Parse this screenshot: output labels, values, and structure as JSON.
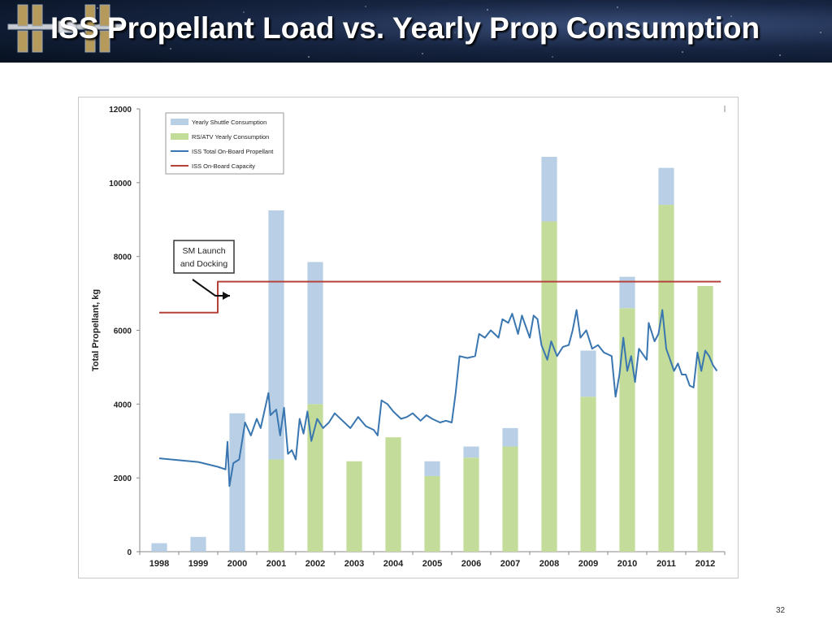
{
  "slide": {
    "title": "ISS Propellant Load vs. Yearly Prop Consumption",
    "slide_number": "32"
  },
  "chart_data": {
    "type": "bar",
    "title": "",
    "xlabel": "",
    "ylabel": "Total Propellant, kg",
    "ylim": [
      0,
      12000
    ],
    "yticks": [
      0,
      2000,
      4000,
      6000,
      8000,
      10000,
      12000
    ],
    "categories": [
      "1998",
      "1999",
      "2000",
      "2001",
      "2002",
      "2003",
      "2004",
      "2005",
      "2006",
      "2007",
      "2008",
      "2009",
      "2010",
      "2011",
      "2012"
    ],
    "series": [
      {
        "name": "Yearly Shuttle Consumption",
        "kind": "bar-stacked",
        "color": "#b8cfe6",
        "values": [
          230,
          400,
          3750,
          6750,
          3850,
          0,
          0,
          400,
          300,
          500,
          1750,
          1250,
          850,
          1000,
          0
        ]
      },
      {
        "name": "RS/ATV Yearly Consumption",
        "kind": "bar-stacked",
        "color": "#c3dc9a",
        "values": [
          0,
          0,
          0,
          2500,
          4000,
          2450,
          3100,
          2050,
          2550,
          2850,
          8950,
          4200,
          6600,
          9400,
          7200
        ]
      },
      {
        "name": "ISS Total On-Board Propellant",
        "kind": "line",
        "color": "#3a76b0",
        "points": [
          [
            1998.5,
            2530
          ],
          [
            1999.0,
            2480
          ],
          [
            1999.5,
            2430
          ],
          [
            2000.0,
            2300
          ],
          [
            2000.2,
            2230
          ],
          [
            2000.25,
            2980
          ],
          [
            2000.3,
            1780
          ],
          [
            2000.4,
            2400
          ],
          [
            2000.55,
            2500
          ],
          [
            2000.7,
            3500
          ],
          [
            2000.85,
            3150
          ],
          [
            2001.0,
            3600
          ],
          [
            2001.1,
            3350
          ],
          [
            2001.3,
            4300
          ],
          [
            2001.35,
            3700
          ],
          [
            2001.5,
            3850
          ],
          [
            2001.6,
            3150
          ],
          [
            2001.7,
            3900
          ],
          [
            2001.8,
            2650
          ],
          [
            2001.9,
            2750
          ],
          [
            2002.0,
            2500
          ],
          [
            2002.1,
            3600
          ],
          [
            2002.2,
            3200
          ],
          [
            2002.3,
            3800
          ],
          [
            2002.4,
            3000
          ],
          [
            2002.55,
            3600
          ],
          [
            2002.7,
            3350
          ],
          [
            2002.85,
            3500
          ],
          [
            2003.0,
            3750
          ],
          [
            2003.2,
            3550
          ],
          [
            2003.4,
            3350
          ],
          [
            2003.6,
            3650
          ],
          [
            2003.8,
            3400
          ],
          [
            2004.0,
            3300
          ],
          [
            2004.1,
            3150
          ],
          [
            2004.2,
            4100
          ],
          [
            2004.35,
            4000
          ],
          [
            2004.5,
            3800
          ],
          [
            2004.7,
            3600
          ],
          [
            2004.85,
            3650
          ],
          [
            2005.0,
            3750
          ],
          [
            2005.2,
            3550
          ],
          [
            2005.35,
            3700
          ],
          [
            2005.5,
            3600
          ],
          [
            2005.7,
            3500
          ],
          [
            2005.85,
            3550
          ],
          [
            2006.0,
            3500
          ],
          [
            2006.1,
            4300
          ],
          [
            2006.2,
            5300
          ],
          [
            2006.4,
            5250
          ],
          [
            2006.6,
            5300
          ],
          [
            2006.7,
            5900
          ],
          [
            2006.85,
            5800
          ],
          [
            2007.0,
            6000
          ],
          [
            2007.2,
            5800
          ],
          [
            2007.3,
            6300
          ],
          [
            2007.45,
            6200
          ],
          [
            2007.55,
            6450
          ],
          [
            2007.7,
            5900
          ],
          [
            2007.8,
            6400
          ],
          [
            2007.9,
            6100
          ],
          [
            2008.0,
            5800
          ],
          [
            2008.1,
            6400
          ],
          [
            2008.2,
            6300
          ],
          [
            2008.3,
            5600
          ],
          [
            2008.45,
            5200
          ],
          [
            2008.55,
            5700
          ],
          [
            2008.7,
            5300
          ],
          [
            2008.85,
            5550
          ],
          [
            2009.0,
            5600
          ],
          [
            2009.1,
            6000
          ],
          [
            2009.2,
            6550
          ],
          [
            2009.3,
            5800
          ],
          [
            2009.45,
            6000
          ],
          [
            2009.6,
            5500
          ],
          [
            2009.75,
            5600
          ],
          [
            2009.9,
            5400
          ],
          [
            2010.0,
            5350
          ],
          [
            2010.1,
            5300
          ],
          [
            2010.2,
            4200
          ],
          [
            2010.3,
            4800
          ],
          [
            2010.4,
            5800
          ],
          [
            2010.5,
            4900
          ],
          [
            2010.6,
            5300
          ],
          [
            2010.7,
            4600
          ],
          [
            2010.8,
            5500
          ],
          [
            2011.0,
            5200
          ],
          [
            2011.05,
            6200
          ],
          [
            2011.2,
            5700
          ],
          [
            2011.3,
            5900
          ],
          [
            2011.4,
            6550
          ],
          [
            2011.5,
            5500
          ],
          [
            2011.6,
            5200
          ],
          [
            2011.7,
            4900
          ],
          [
            2011.8,
            5100
          ],
          [
            2011.9,
            4800
          ],
          [
            2012.0,
            4800
          ],
          [
            2012.1,
            4500
          ],
          [
            2012.2,
            4450
          ],
          [
            2012.3,
            5400
          ],
          [
            2012.4,
            4900
          ],
          [
            2012.5,
            5450
          ],
          [
            2012.6,
            5300
          ],
          [
            2012.7,
            5050
          ],
          [
            2012.8,
            4900
          ]
        ]
      },
      {
        "name": "ISS On-Board Capacity",
        "kind": "line",
        "color": "#b5413b",
        "points": [
          [
            1998.5,
            6480
          ],
          [
            2000.0,
            6480
          ],
          [
            2000.0,
            7320
          ],
          [
            2012.9,
            7320
          ]
        ]
      }
    ],
    "annotation": {
      "text_line1": "SM Launch",
      "text_line2": "and Docking"
    },
    "legend_placement": "top-left",
    "grid": false
  }
}
